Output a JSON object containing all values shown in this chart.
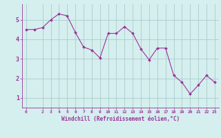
{
  "x": [
    0,
    1,
    2,
    3,
    4,
    5,
    6,
    7,
    8,
    9,
    10,
    11,
    12,
    13,
    14,
    15,
    16,
    17,
    18,
    19,
    20,
    21,
    22,
    23
  ],
  "y": [
    4.5,
    4.5,
    4.6,
    5.0,
    5.3,
    5.2,
    4.35,
    3.6,
    3.45,
    3.05,
    4.3,
    4.3,
    4.65,
    4.3,
    3.5,
    2.95,
    3.55,
    3.55,
    2.15,
    1.8,
    1.2,
    1.65,
    2.15,
    1.8
  ],
  "line_color": "#993399",
  "marker": "D",
  "marker_size": 2,
  "bg_color": "#d5eeee",
  "grid_color": "#aacccc",
  "xlabel": "Windchill (Refroidissement éolien,°C)",
  "xlabel_color": "#993399",
  "tick_color": "#993399",
  "ylim": [
    0.5,
    5.8
  ],
  "xlim": [
    -0.5,
    23.5
  ],
  "yticks": [
    1,
    2,
    3,
    4,
    5
  ],
  "xticks": [
    0,
    2,
    3,
    4,
    5,
    6,
    7,
    8,
    9,
    10,
    11,
    12,
    13,
    14,
    15,
    16,
    17,
    18,
    19,
    20,
    21,
    22,
    23
  ],
  "xtick_labels": [
    "0",
    "2",
    "3",
    "4",
    "5",
    "6",
    "7",
    "8",
    "9",
    "10",
    "11",
    "12",
    "13",
    "14",
    "15",
    "16",
    "17",
    "18",
    "19",
    "20",
    "21",
    "22",
    "23"
  ]
}
